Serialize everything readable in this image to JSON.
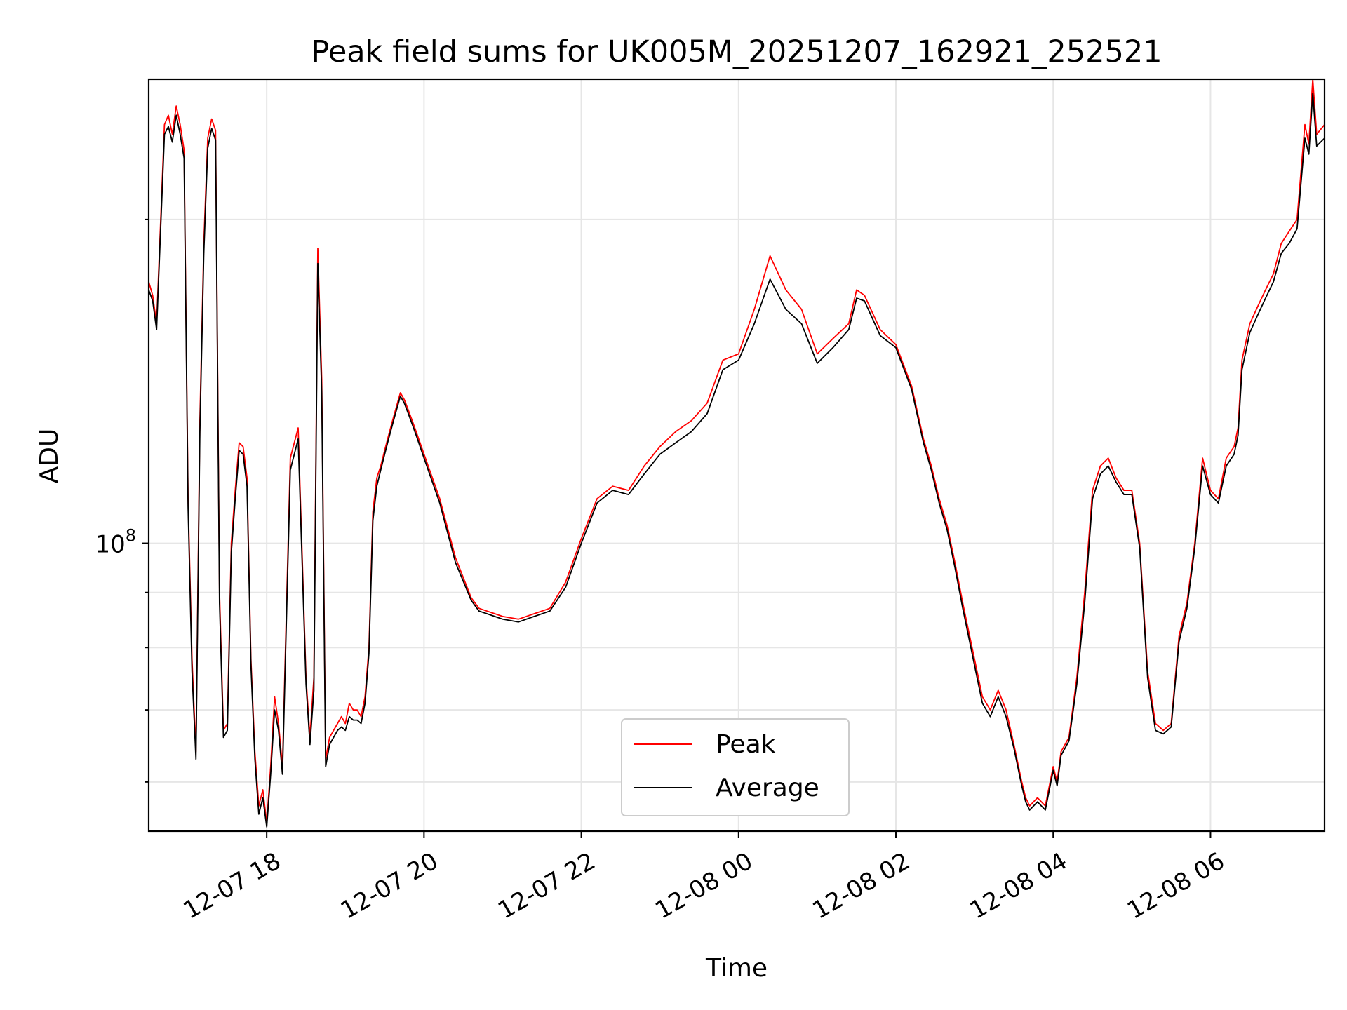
{
  "chart_data": {
    "type": "line",
    "title": "Peak field sums for UK005M_20251207_162921_252521",
    "xlabel": "Time",
    "ylabel": "ADU",
    "yscale": "log",
    "ylim": [
      54000000,
      270000000
    ],
    "xlim_hours": [
      16.5,
      31.45
    ],
    "x_ticks": [
      {
        "hour": 18,
        "label": "12-07 18"
      },
      {
        "hour": 20,
        "label": "12-07 20"
      },
      {
        "hour": 22,
        "label": "12-07 22"
      },
      {
        "hour": 24,
        "label": "12-08 00"
      },
      {
        "hour": 26,
        "label": "12-08 02"
      },
      {
        "hour": 28,
        "label": "12-08 04"
      },
      {
        "hour": 30,
        "label": "12-08 06"
      }
    ],
    "y_major_tick": {
      "value": 100000000,
      "base": "10",
      "exponent": "8"
    },
    "y_minor_ticks": [
      60000000,
      70000000,
      80000000,
      90000000,
      200000000
    ],
    "grid": true,
    "legend_position": "lower-center",
    "series": [
      {
        "name": "Peak",
        "color": "#ff0000",
        "x_hours": [
          16.5,
          16.55,
          16.6,
          16.7,
          16.75,
          16.8,
          16.85,
          16.9,
          16.95,
          17.0,
          17.05,
          17.1,
          17.15,
          17.2,
          17.25,
          17.3,
          17.35,
          17.4,
          17.45,
          17.5,
          17.55,
          17.6,
          17.65,
          17.7,
          17.75,
          17.8,
          17.85,
          17.9,
          17.95,
          18.0,
          18.05,
          18.1,
          18.15,
          18.2,
          18.3,
          18.4,
          18.5,
          18.55,
          18.6,
          18.65,
          18.7,
          18.75,
          18.8,
          18.85,
          18.9,
          18.95,
          19.0,
          19.05,
          19.1,
          19.15,
          19.2,
          19.25,
          19.3,
          19.35,
          19.4,
          19.45,
          19.5,
          19.55,
          19.6,
          19.65,
          19.7,
          19.75,
          19.8,
          19.85,
          19.9,
          20.0,
          20.2,
          20.4,
          20.6,
          20.7,
          20.8,
          20.9,
          21.0,
          21.2,
          21.4,
          21.6,
          21.8,
          22.0,
          22.2,
          22.4,
          22.6,
          22.8,
          23.0,
          23.2,
          23.4,
          23.6,
          23.8,
          24.0,
          24.2,
          24.4,
          24.6,
          24.8,
          25.0,
          25.2,
          25.4,
          25.5,
          25.6,
          25.8,
          26.0,
          26.2,
          26.35,
          26.45,
          26.55,
          26.65,
          26.75,
          26.85,
          27.0,
          27.1,
          27.2,
          27.3,
          27.4,
          27.5,
          27.6,
          27.65,
          27.7,
          27.8,
          27.9,
          28.0,
          28.05,
          28.1,
          28.2,
          28.3,
          28.4,
          28.5,
          28.6,
          28.7,
          28.8,
          28.9,
          29.0,
          29.1,
          29.2,
          29.3,
          29.4,
          29.5,
          29.6,
          29.7,
          29.8,
          29.9,
          30.0,
          30.1,
          30.2,
          30.3,
          30.35,
          30.4,
          30.5,
          30.6,
          30.7,
          30.8,
          30.9,
          31.0,
          31.1,
          31.2,
          31.25,
          31.3,
          31.35,
          31.45
        ],
        "values": [
          175000000.0,
          170000000.0,
          160000000.0,
          245000000.0,
          250000000.0,
          240000000.0,
          255000000.0,
          245000000.0,
          232000000.0,
          110000000.0,
          78000000.0,
          64000000.0,
          130000000.0,
          190000000.0,
          238000000.0,
          248000000.0,
          242000000.0,
          90000000.0,
          67000000.0,
          68000000.0,
          100000000.0,
          112000000.0,
          124000000.0,
          123000000.0,
          115000000.0,
          78000000.0,
          64000000.0,
          57000000.0,
          59000000.0,
          55000000.0,
          62000000.0,
          72000000.0,
          68000000.0,
          62000000.0,
          120000000.0,
          128000000.0,
          75000000.0,
          66000000.0,
          75000000.0,
          188000000.0,
          142000000.0,
          63000000.0,
          66000000.0,
          67000000.0,
          68000000.0,
          69000000.0,
          68000000.0,
          71000000.0,
          70000000.0,
          70000000.0,
          69000000.0,
          72000000.0,
          80000000.0,
          107000000.0,
          115000000.0,
          118000000.0,
          122000000.0,
          126000000.0,
          130000000.0,
          134000000.0,
          138000000.0,
          136000000.0,
          133000000.0,
          130000000.0,
          127000000.0,
          121000000.0,
          110000000.0,
          97000000.0,
          89000000.0,
          87000000.0,
          86500000.0,
          86000000.0,
          85500000.0,
          85000000.0,
          86000000.0,
          87000000.0,
          92000000.0,
          101000000.0,
          110000000.0,
          113000000.0,
          112000000.0,
          118000000.0,
          123000000.0,
          127000000.0,
          130000000.0,
          135000000.0,
          148000000.0,
          150000000.0,
          165000000.0,
          185000000.0,
          172000000.0,
          165000000.0,
          150000000.0,
          155000000.0,
          160000000.0,
          172000000.0,
          170000000.0,
          158000000.0,
          153000000.0,
          140000000.0,
          125000000.0,
          118000000.0,
          110000000.0,
          104000000.0,
          96000000.0,
          88000000.0,
          78000000.0,
          72000000.0,
          70000000.0,
          73000000.0,
          70000000.0,
          65000000.0,
          60000000.0,
          58000000.0,
          57000000.0,
          58000000.0,
          57000000.0,
          62000000.0,
          60000000.0,
          64000000.0,
          66000000.0,
          75000000.0,
          90000000.0,
          112000000.0,
          118000000.0,
          120000000.0,
          115000000.0,
          112000000.0,
          112000000.0,
          100000000.0,
          76000000.0,
          68000000.0,
          67000000.0,
          68000000.0,
          82000000.0,
          88000000.0,
          100000000.0,
          120000000.0,
          112000000.0,
          110000000.0,
          120000000.0,
          123000000.0,
          128000000.0,
          148000000.0,
          160000000.0,
          166000000.0,
          172000000.0,
          178000000.0,
          190000000.0,
          195000000.0,
          200000000.0,
          245000000.0,
          235000000.0,
          270000000.0,
          240000000.0,
          245000000.0
        ]
      },
      {
        "name": "Average",
        "color": "#000000",
        "x_hours": [
          16.5,
          16.55,
          16.6,
          16.7,
          16.75,
          16.8,
          16.85,
          16.9,
          16.95,
          17.0,
          17.05,
          17.1,
          17.15,
          17.2,
          17.25,
          17.3,
          17.35,
          17.4,
          17.45,
          17.5,
          17.55,
          17.6,
          17.65,
          17.7,
          17.75,
          17.8,
          17.85,
          17.9,
          17.95,
          18.0,
          18.05,
          18.1,
          18.15,
          18.2,
          18.3,
          18.4,
          18.5,
          18.55,
          18.6,
          18.65,
          18.7,
          18.75,
          18.8,
          18.85,
          18.9,
          18.95,
          19.0,
          19.05,
          19.1,
          19.15,
          19.2,
          19.25,
          19.3,
          19.35,
          19.4,
          19.45,
          19.5,
          19.55,
          19.6,
          19.65,
          19.7,
          19.75,
          19.8,
          19.85,
          19.9,
          20.0,
          20.2,
          20.4,
          20.6,
          20.7,
          20.8,
          20.9,
          21.0,
          21.2,
          21.4,
          21.6,
          21.8,
          22.0,
          22.2,
          22.4,
          22.6,
          22.8,
          23.0,
          23.2,
          23.4,
          23.6,
          23.8,
          24.0,
          24.2,
          24.4,
          24.6,
          24.8,
          25.0,
          25.2,
          25.4,
          25.5,
          25.6,
          25.8,
          26.0,
          26.2,
          26.35,
          26.45,
          26.55,
          26.65,
          26.75,
          26.85,
          27.0,
          27.1,
          27.2,
          27.3,
          27.4,
          27.5,
          27.6,
          27.65,
          27.7,
          27.8,
          27.9,
          28.0,
          28.05,
          28.1,
          28.2,
          28.3,
          28.4,
          28.5,
          28.6,
          28.7,
          28.8,
          28.9,
          29.0,
          29.1,
          29.2,
          29.3,
          29.4,
          29.5,
          29.6,
          29.7,
          29.8,
          29.9,
          30.0,
          30.1,
          30.2,
          30.3,
          30.35,
          30.4,
          30.5,
          30.6,
          30.7,
          30.8,
          30.9,
          31.0,
          31.1,
          31.2,
          31.25,
          31.3,
          31.35,
          31.45
        ],
        "values": [
          172000000.0,
          168000000.0,
          158000000.0,
          240000000.0,
          244000000.0,
          236000000.0,
          250000000.0,
          240000000.0,
          228000000.0,
          108000000.0,
          76000000.0,
          63000000.0,
          127000000.0,
          186000000.0,
          233000000.0,
          243000000.0,
          237000000.0,
          88000000.0,
          66000000.0,
          67000000.0,
          98000000.0,
          110000000.0,
          122000000.0,
          121000000.0,
          113000000.0,
          77000000.0,
          63000000.0,
          56000000.0,
          58000000.0,
          54500000.0,
          61000000.0,
          70000000.0,
          67000000.0,
          61000000.0,
          117000000.0,
          125000000.0,
          74000000.0,
          65000000.0,
          73000000.0,
          182000000.0,
          138000000.0,
          62000000.0,
          65000000.0,
          66000000.0,
          67000000.0,
          67500000.0,
          67000000.0,
          69000000.0,
          68500000.0,
          68500000.0,
          68000000.0,
          71000000.0,
          79000000.0,
          105000000.0,
          113000000.0,
          117000000.0,
          121000000.0,
          125000000.0,
          129000000.0,
          133000000.0,
          137000000.0,
          135000000.0,
          132000000.0,
          129000000.0,
          126000000.0,
          120000000.0,
          109000000.0,
          96000000.0,
          88500000.0,
          86500000.0,
          86000000.0,
          85500000.0,
          85000000.0,
          84500000.0,
          85500000.0,
          86500000.0,
          91000000.0,
          100000000.0,
          109000000.0,
          112000000.0,
          111000000.0,
          116000000.0,
          121000000.0,
          124000000.0,
          127000000.0,
          132000000.0,
          145000000.0,
          148000000.0,
          160000000.0,
          176000000.0,
          165000000.0,
          160000000.0,
          147000000.0,
          152000000.0,
          158000000.0,
          169000000.0,
          168000000.0,
          156000000.0,
          152000000.0,
          139000000.0,
          124000000.0,
          117000000.0,
          109000000.0,
          103000000.0,
          95000000.0,
          87000000.0,
          77000000.0,
          71000000.0,
          69000000.0,
          72000000.0,
          69000000.0,
          64500000.0,
          59500000.0,
          57500000.0,
          56500000.0,
          57500000.0,
          56500000.0,
          61500000.0,
          59500000.0,
          63500000.0,
          65500000.0,
          74000000.0,
          88000000.0,
          110000000.0,
          116000000.0,
          118000000.0,
          114000000.0,
          111000000.0,
          111000000.0,
          99000000.0,
          75000000.0,
          67000000.0,
          66500000.0,
          67500000.0,
          81000000.0,
          87000000.0,
          99000000.0,
          118000000.0,
          111000000.0,
          109000000.0,
          118000000.0,
          121000000.0,
          126000000.0,
          145000000.0,
          157000000.0,
          163000000.0,
          169000000.0,
          175000000.0,
          186000000.0,
          190000000.0,
          196000000.0,
          238000000.0,
          230000000.0,
          262000000.0,
          234000000.0,
          238000000.0
        ]
      }
    ]
  }
}
